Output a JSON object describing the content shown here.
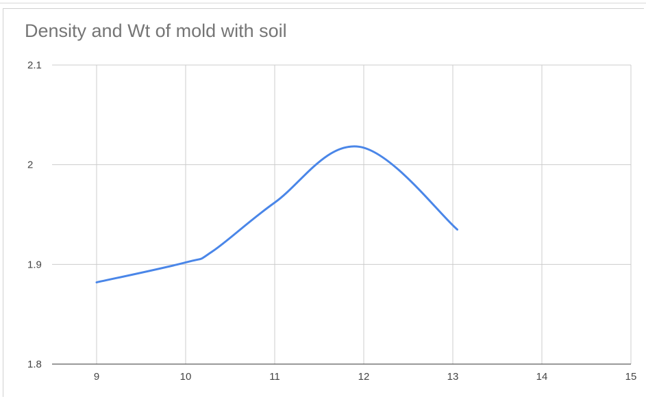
{
  "chart_data": {
    "type": "line",
    "title": "Density and Wt of mold with soil",
    "xlabel": "",
    "ylabel": "",
    "xlim": [
      8.5,
      15
    ],
    "ylim": [
      1.8,
      2.1
    ],
    "x_ticks": [
      "9",
      "10",
      "11",
      "12",
      "13",
      "14",
      "15"
    ],
    "y_ticks": [
      "1.8",
      "1.9",
      "2",
      "2.1"
    ],
    "grid": true,
    "legend": "none",
    "smooth": true,
    "color": "#4a86e8",
    "series": [
      {
        "x": [
          9.0,
          10.0,
          10.3,
          11.0,
          11.95,
          13.05
        ],
        "values": [
          1.882,
          1.902,
          1.913,
          1.962,
          2.018,
          1.935
        ]
      }
    ]
  }
}
